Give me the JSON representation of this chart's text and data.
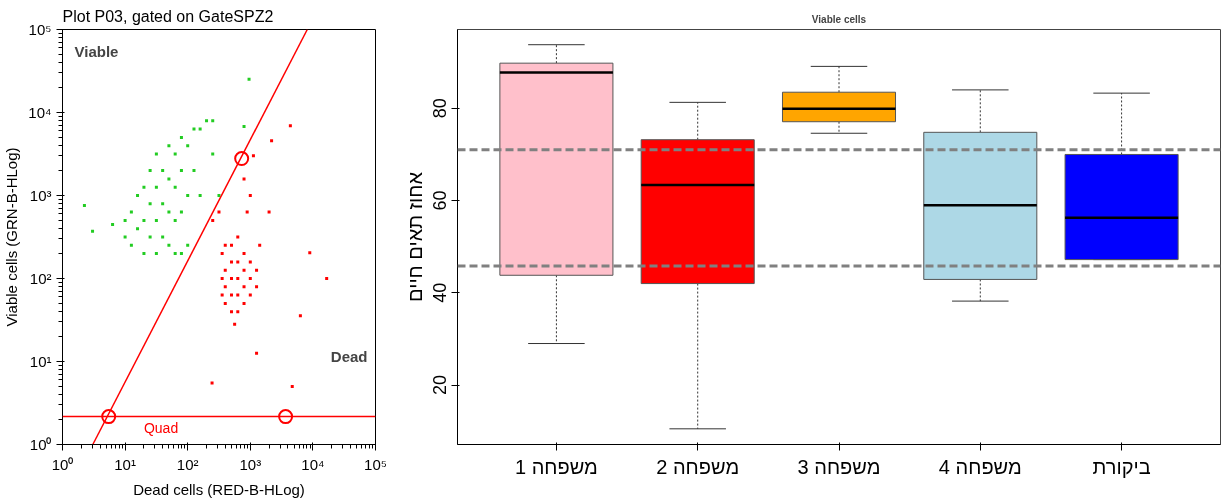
{
  "chart_data": [
    {
      "type": "scatter",
      "title": "Plot P03, gated on GateSPZ2",
      "xlabel": "Dead cells (RED-B-HLog)",
      "ylabel": "Viable cells (GRN-B-HLog)",
      "log": "xy",
      "grid": false,
      "xlim": [
        1,
        100000
      ],
      "ylim": [
        1,
        100000
      ],
      "xticks": [
        {
          "value": 1,
          "label": "10⁰"
        },
        {
          "value": 10,
          "label": "10¹"
        },
        {
          "value": 100,
          "label": "10²"
        },
        {
          "value": 1000,
          "label": "10³"
        },
        {
          "value": 10000,
          "label": "10⁴"
        },
        {
          "value": 100000,
          "label": "10⁵"
        }
      ],
      "yticks": [
        {
          "value": 1,
          "label": "10⁰"
        },
        {
          "value": 10,
          "label": "10¹"
        },
        {
          "value": 100,
          "label": "10²"
        },
        {
          "value": 1000,
          "label": "10³"
        },
        {
          "value": 10000,
          "label": "10⁴"
        },
        {
          "value": 100000,
          "label": "10⁵"
        }
      ],
      "annotations": [
        "Viable",
        "Dead"
      ],
      "ref_lines": [
        {
          "axis": "y",
          "value": 2.17,
          "label": "Quad",
          "color": "#ff0000",
          "line_style": "solid"
        }
      ],
      "series": [
        {
          "type": "scatter",
          "marker": "square",
          "color": "#22cc22",
          "x": [
            2.24,
            3.02,
            6.31,
            955,
            794,
            10,
            10,
            12.6,
            12.6,
            15.8,
            15.8,
            20,
            20,
            20,
            25.1,
            25.1,
            25.1,
            31.6,
            31.6,
            31.6,
            31.6,
            39.8,
            39.8,
            39.8,
            50.1,
            50.1,
            50.1,
            50.1,
            63.1,
            63.1,
            63.1,
            63.1,
            79.4,
            79.4,
            79.4,
            79.4,
            100,
            100,
            100,
            126,
            126,
            158,
            158,
            200,
            251,
            251,
            316
          ],
          "values": [
            759,
            372,
            447,
            25100,
            6760,
            316,
            501,
            251,
            631,
            398,
            1000,
            200,
            501,
            1259,
            316,
            794,
            1995,
            200,
            501,
            1259,
            3162,
            316,
            794,
            1995,
            251,
            631,
            1585,
            3981,
            200,
            501,
            1259,
            3162,
            200,
            631,
            1995,
            5012,
            251,
            1000,
            3981,
            1995,
            6310,
            1000,
            6310,
            7943,
            7943,
            3162,
            1000
          ]
        },
        {
          "type": "scatter",
          "marker": "square",
          "color": "#ff0000",
          "x": [
            1122,
            4365,
            16600,
            4677,
            245,
            1259,
            8913,
            2188,
            6310,
            1995,
            251,
            316,
            355,
            355,
            355,
            398,
            398,
            398,
            398,
            501,
            501,
            501,
            501,
            501,
            562,
            631,
            631,
            631,
            631,
            631,
            794,
            794,
            794,
            794,
            1000,
            1000,
            1000,
            1259,
            1259,
            1413,
            891,
            1000,
            794
          ],
          "values": [
            3020,
            6918,
            100,
            5.01,
            5.5,
            12.6,
            204,
            4571,
            35.5,
            631,
            501,
            631,
            200,
            100,
            63.1,
            251,
            126,
            79.4,
            50.1,
            251,
            158,
            100,
            63.1,
            39.8,
            28.2,
            316,
            158,
            100,
            63.1,
            39.8,
            200,
            126,
            79.4,
            50.1,
            158,
            100,
            63.1,
            126,
            79.4,
            251,
            631,
            1000,
            1585
          ]
        },
        {
          "type": "line",
          "marker": "none",
          "line_style": "solid",
          "color": "#ff0000",
          "x": [
            3.05,
            8130
          ],
          "values": [
            1,
            100000
          ]
        },
        {
          "type": "scatter",
          "marker": "circle",
          "color": "#ff0000",
          "x": [
            5.47,
            728,
            3664
          ],
          "values": [
            2.17,
            2787,
            2.17
          ]
        }
      ]
    },
    {
      "type": "box",
      "title": "Viable cells",
      "ylabel": "אחוז תאים חיים",
      "grid": false,
      "categories": [
        "משפחה 1",
        "משפחה 2",
        "משפחה 3",
        "משפחה 4",
        "ביקורת"
      ],
      "colors": [
        "#ffc0cb",
        "#ff0000",
        "#ffa500",
        "#add8e6",
        "#0000ff"
      ],
      "ylim": [
        7.1,
        97.1
      ],
      "yticks": [
        20,
        40,
        60,
        80
      ],
      "boxes": [
        {
          "low": 29.0,
          "q1": 43.8,
          "median": 87.8,
          "q3": 89.8,
          "high": 93.8
        },
        {
          "low": 10.5,
          "q1": 42.0,
          "median": 63.4,
          "q3": 73.2,
          "high": 81.3
        },
        {
          "low": 74.6,
          "q1": 77.1,
          "median": 79.9,
          "q3": 83.5,
          "high": 89.1
        },
        {
          "low": 38.2,
          "q1": 42.9,
          "median": 59.0,
          "q3": 74.8,
          "high": 84.0
        },
        {
          "low": 47.2,
          "q1": 47.2,
          "median": 56.3,
          "q3": 70.0,
          "high": 83.3
        }
      ],
      "ref_lines": [
        {
          "axis": "y",
          "value": 71,
          "color": "#808080",
          "line_style": "dashed"
        },
        {
          "axis": "y",
          "value": 45.8,
          "color": "#808080",
          "line_style": "dashed"
        }
      ]
    }
  ]
}
